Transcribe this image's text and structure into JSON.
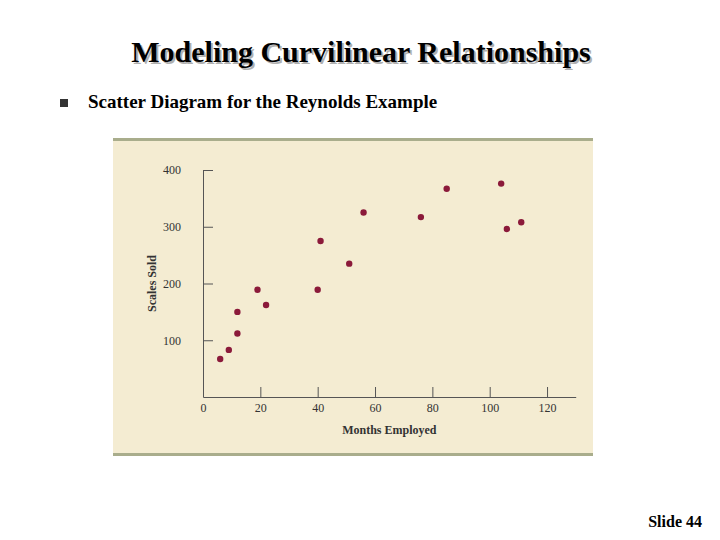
{
  "slide": {
    "heading": "Modeling Curvilinear Relationships",
    "bullet": "Scatter Diagram for the Reynolds Example",
    "footer": "Slide 44"
  },
  "chart_data": {
    "type": "scatter",
    "x_label": "Months Employed",
    "y_label": "Scales Sold",
    "x": [
      41,
      106,
      76,
      104,
      22,
      12,
      85,
      111,
      40,
      51,
      9,
      12,
      6,
      56,
      19
    ],
    "values": [
      275,
      296,
      317,
      376,
      162,
      150,
      367,
      308,
      189,
      235,
      83,
      112,
      67,
      325,
      189
    ],
    "color": "#8b1a3a",
    "marker": "circle",
    "xlim": [
      0,
      130
    ],
    "xticks": [
      0,
      20,
      40,
      60,
      80,
      100,
      120
    ],
    "ylim": [
      0,
      400
    ],
    "yticks": [
      100,
      200,
      300,
      400
    ],
    "grid": false
  }
}
